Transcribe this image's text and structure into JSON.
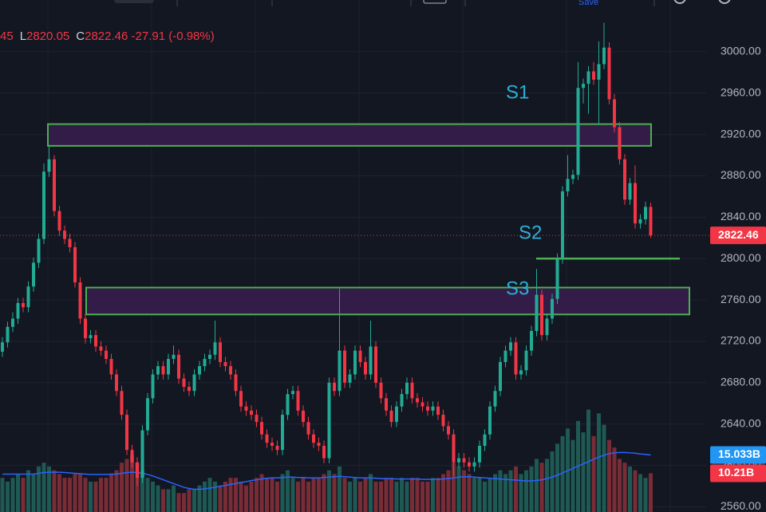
{
  "header": {
    "open_fragment": "45",
    "low_key": "L",
    "low": "2820.05",
    "close_key": "C",
    "close": "2822.46",
    "change": "-27.91 (-0.98%)",
    "save": "Save"
  },
  "chart_data": {
    "type": "candlestick",
    "ylim": [
      2555,
      3050
    ],
    "yticks": [
      {
        "value": 2560,
        "label": "2560.00"
      },
      {
        "value": 2600,
        "label": "2600.00"
      },
      {
        "value": 2640,
        "label": "2640.00"
      },
      {
        "value": 2680,
        "label": "2680.00"
      },
      {
        "value": 2720,
        "label": "2720.00"
      },
      {
        "value": 2760,
        "label": "2760.00"
      },
      {
        "value": 2800,
        "label": "2800.00"
      },
      {
        "value": 2840,
        "label": "2840.00"
      },
      {
        "value": 2880,
        "label": "2880.00"
      },
      {
        "value": 2920,
        "label": "2920.00"
      },
      {
        "value": 2960,
        "label": "2960.00"
      },
      {
        "value": 3000,
        "label": "3000.00"
      }
    ],
    "grid": true,
    "up_color": "#22ab94",
    "down_color": "#f23645",
    "ma_color": "#2962ff",
    "vlim": [
      0,
      135
    ],
    "ohlc": [
      [
        2710,
        2724,
        2705,
        2719
      ],
      [
        2719,
        2739,
        2714,
        2734
      ],
      [
        2734,
        2748,
        2729,
        2742
      ],
      [
        2742,
        2762,
        2737,
        2757
      ],
      [
        2757,
        2762,
        2748,
        2753
      ],
      [
        2753,
        2778,
        2748,
        2773
      ],
      [
        2773,
        2801,
        2768,
        2796
      ],
      [
        2796,
        2824,
        2791,
        2819
      ],
      [
        2819,
        2892,
        2814,
        2884
      ],
      [
        2884,
        2910,
        2879,
        2896
      ],
      [
        2896,
        2900,
        2841,
        2846
      ],
      [
        2846,
        2851,
        2822,
        2827
      ],
      [
        2827,
        2832,
        2814,
        2819
      ],
      [
        2819,
        2824,
        2806,
        2811
      ],
      [
        2811,
        2816,
        2772,
        2777
      ],
      [
        2777,
        2782,
        2737,
        2742
      ],
      [
        2742,
        2747,
        2718,
        2723
      ],
      [
        2723,
        2731,
        2718,
        2726
      ],
      [
        2726,
        2731,
        2710,
        2715
      ],
      [
        2715,
        2720,
        2706,
        2711
      ],
      [
        2711,
        2716,
        2698,
        2703
      ],
      [
        2703,
        2708,
        2683,
        2688
      ],
      [
        2688,
        2693,
        2667,
        2672
      ],
      [
        2672,
        2677,
        2644,
        2649
      ],
      [
        2649,
        2654,
        2610,
        2615
      ],
      [
        2615,
        2620,
        2598,
        2603
      ],
      [
        2603,
        2608,
        2580,
        2588
      ],
      [
        2588,
        2639,
        2583,
        2634
      ],
      [
        2634,
        2670,
        2629,
        2665
      ],
      [
        2665,
        2693,
        2660,
        2688
      ],
      [
        2688,
        2701,
        2683,
        2696
      ],
      [
        2696,
        2701,
        2683,
        2688
      ],
      [
        2688,
        2708,
        2683,
        2703
      ],
      [
        2703,
        2716,
        2698,
        2707
      ],
      [
        2707,
        2712,
        2679,
        2684
      ],
      [
        2684,
        2689,
        2671,
        2676
      ],
      [
        2676,
        2681,
        2667,
        2672
      ],
      [
        2672,
        2693,
        2667,
        2688
      ],
      [
        2688,
        2701,
        2683,
        2696
      ],
      [
        2696,
        2708,
        2691,
        2703
      ],
      [
        2703,
        2712,
        2698,
        2707
      ],
      [
        2707,
        2740,
        2702,
        2719
      ],
      [
        2719,
        2724,
        2695,
        2700
      ],
      [
        2700,
        2705,
        2691,
        2696
      ],
      [
        2696,
        2701,
        2683,
        2688
      ],
      [
        2688,
        2693,
        2667,
        2672
      ],
      [
        2672,
        2677,
        2652,
        2657
      ],
      [
        2657,
        2662,
        2648,
        2653
      ],
      [
        2653,
        2658,
        2644,
        2649
      ],
      [
        2649,
        2654,
        2637,
        2642
      ],
      [
        2642,
        2647,
        2625,
        2630
      ],
      [
        2630,
        2635,
        2617,
        2622
      ],
      [
        2622,
        2627,
        2614,
        2619
      ],
      [
        2619,
        2624,
        2610,
        2615
      ],
      [
        2615,
        2654,
        2610,
        2649
      ],
      [
        2649,
        2674,
        2644,
        2669
      ],
      [
        2669,
        2677,
        2664,
        2672
      ],
      [
        2672,
        2677,
        2648,
        2653
      ],
      [
        2653,
        2658,
        2637,
        2642
      ],
      [
        2642,
        2647,
        2625,
        2630
      ],
      [
        2630,
        2635,
        2617,
        2622
      ],
      [
        2622,
        2627,
        2614,
        2619
      ],
      [
        2619,
        2624,
        2602,
        2607
      ],
      [
        2607,
        2685,
        2602,
        2680
      ],
      [
        2680,
        2685,
        2667,
        2672
      ],
      [
        2672,
        2771,
        2667,
        2711
      ],
      [
        2711,
        2716,
        2675,
        2680
      ],
      [
        2680,
        2693,
        2675,
        2688
      ],
      [
        2688,
        2716,
        2683,
        2711
      ],
      [
        2711,
        2716,
        2695,
        2700
      ],
      [
        2700,
        2705,
        2683,
        2688
      ],
      [
        2688,
        2740,
        2683,
        2715
      ],
      [
        2715,
        2720,
        2675,
        2680
      ],
      [
        2680,
        2685,
        2660,
        2665
      ],
      [
        2665,
        2670,
        2648,
        2653
      ],
      [
        2653,
        2658,
        2637,
        2642
      ],
      [
        2642,
        2662,
        2637,
        2657
      ],
      [
        2657,
        2674,
        2652,
        2669
      ],
      [
        2669,
        2685,
        2664,
        2680
      ],
      [
        2680,
        2685,
        2660,
        2665
      ],
      [
        2665,
        2670,
        2656,
        2661
      ],
      [
        2661,
        2666,
        2652,
        2657
      ],
      [
        2657,
        2662,
        2648,
        2653
      ],
      [
        2653,
        2662,
        2648,
        2657
      ],
      [
        2657,
        2662,
        2644,
        2649
      ],
      [
        2649,
        2654,
        2633,
        2638
      ],
      [
        2638,
        2643,
        2625,
        2630
      ],
      [
        2630,
        2635,
        2590,
        2603
      ],
      [
        2603,
        2612,
        2598,
        2607
      ],
      [
        2607,
        2612,
        2598,
        2603
      ],
      [
        2603,
        2608,
        2594,
        2599
      ],
      [
        2599,
        2608,
        2594,
        2603
      ],
      [
        2603,
        2624,
        2598,
        2619
      ],
      [
        2619,
        2635,
        2614,
        2630
      ],
      [
        2630,
        2662,
        2625,
        2657
      ],
      [
        2657,
        2677,
        2652,
        2672
      ],
      [
        2672,
        2705,
        2667,
        2700
      ],
      [
        2700,
        2716,
        2695,
        2711
      ],
      [
        2711,
        2724,
        2706,
        2719
      ],
      [
        2719,
        2724,
        2683,
        2688
      ],
      [
        2688,
        2697,
        2683,
        2692
      ],
      [
        2692,
        2716,
        2687,
        2711
      ],
      [
        2711,
        2735,
        2706,
        2730
      ],
      [
        2730,
        2790,
        2725,
        2765
      ],
      [
        2765,
        2770,
        2721,
        2726
      ],
      [
        2726,
        2747,
        2721,
        2742
      ],
      [
        2742,
        2766,
        2737,
        2761
      ],
      [
        2761,
        2805,
        2756,
        2800
      ],
      [
        2800,
        2870,
        2795,
        2865
      ],
      [
        2865,
        2900,
        2860,
        2877
      ],
      [
        2877,
        2886,
        2872,
        2881
      ],
      [
        2881,
        2990,
        2876,
        2965
      ],
      [
        2965,
        2974,
        2950,
        2969
      ],
      [
        2969,
        2986,
        2940,
        2981
      ],
      [
        2981,
        2990,
        2968,
        2973
      ],
      [
        2973,
        3010,
        2930,
        2988
      ],
      [
        2988,
        3028,
        2983,
        3004
      ],
      [
        3004,
        3009,
        2949,
        2954
      ],
      [
        2954,
        2959,
        2922,
        2927
      ],
      [
        2927,
        2932,
        2891,
        2896
      ],
      [
        2896,
        2901,
        2852,
        2857
      ],
      [
        2857,
        2878,
        2852,
        2873
      ],
      [
        2873,
        2890,
        2829,
        2834
      ],
      [
        2834,
        2843,
        2829,
        2838
      ],
      [
        2838,
        2855,
        2833,
        2850
      ],
      [
        2850,
        2854,
        2820.05,
        2822.46
      ]
    ],
    "volume": [
      9,
      8,
      9,
      10,
      9,
      11,
      10,
      12,
      13,
      12,
      11,
      10,
      9,
      9,
      10,
      10,
      9,
      8,
      8,
      9,
      9,
      10,
      11,
      13,
      14,
      15,
      13,
      11,
      9,
      8,
      7,
      6,
      6,
      7,
      5,
      5,
      6,
      6,
      7,
      8,
      9,
      8,
      7,
      8,
      9,
      9,
      8,
      7,
      8,
      9,
      10,
      9,
      9,
      8,
      10,
      11,
      9,
      8,
      9,
      8,
      9,
      9,
      10,
      11,
      10,
      12,
      9,
      8,
      9,
      8,
      9,
      10,
      8,
      8,
      9,
      9,
      8,
      9,
      8,
      9,
      9,
      8,
      8,
      9,
      9,
      10,
      11,
      13,
      12,
      11,
      10,
      9,
      9,
      8,
      9,
      10,
      11,
      10,
      11,
      12,
      10,
      11,
      12,
      14,
      13,
      14,
      16,
      18,
      20,
      22,
      19,
      24,
      21,
      27,
      20,
      26,
      23,
      19,
      17,
      14,
      13,
      12,
      11,
      10,
      9,
      10.21
    ],
    "volume_ma": [
      10,
      10,
      10,
      10,
      10,
      10,
      10,
      10.2,
      10.4,
      10.5,
      10.5,
      10.5,
      10.4,
      10.3,
      10.2,
      10.1,
      10,
      9.9,
      9.9,
      9.9,
      9.9,
      10,
      10,
      10.2,
      10.4,
      10.5,
      10.4,
      10.2,
      9.9,
      9.5,
      9,
      8.5,
      8,
      7.5,
      7,
      6.5,
      6.2,
      6,
      6,
      6.1,
      6.3,
      6.5,
      6.8,
      7,
      7.3,
      7.5,
      7.8,
      8,
      8.3,
      8.5,
      8.7,
      8.9,
      9,
      9,
      9.1,
      9.2,
      9.2,
      9.1,
      9.1,
      9,
      9,
      9,
      9.1,
      9.2,
      9.3,
      9.4,
      9.3,
      9.2,
      9.1,
      9,
      9,
      9,
      8.9,
      8.8,
      8.8,
      8.8,
      8.7,
      8.7,
      8.7,
      8.7,
      8.7,
      8.6,
      8.6,
      8.6,
      8.6,
      8.7,
      8.8,
      9,
      9.2,
      9.3,
      9.3,
      9.2,
      9.1,
      9,
      8.9,
      8.8,
      8.7,
      8.6,
      8.5,
      8.4,
      8.3,
      8.2,
      8.2,
      8.3,
      8.5,
      8.8,
      9.2,
      9.7,
      10.3,
      10.9,
      11.5,
      12.1,
      12.7,
      13.3,
      13.9,
      14.5,
      15,
      15.4,
      15.6,
      15.7,
      15.7,
      15.6,
      15.5,
      15.3,
      15.2,
      15.033
    ],
    "last_labels": {
      "price": "2822.46",
      "volume_ma": "15.033B",
      "volume": "10.21B"
    },
    "zones": [
      {
        "label": "S1",
        "top": 2930,
        "bottom": 2909
      },
      {
        "label": "S3",
        "top": 2772,
        "bottom": 2746
      }
    ],
    "level": {
      "label": "S2",
      "value": 2800
    }
  }
}
